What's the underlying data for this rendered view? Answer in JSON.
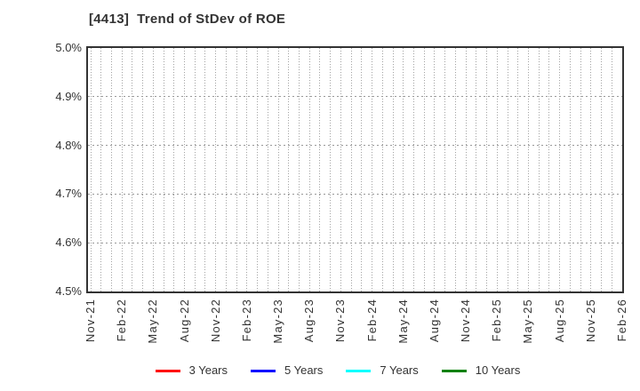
{
  "chart": {
    "title": "[4413]  Trend of StDev of ROE"
  },
  "chart_data": {
    "type": "line",
    "title": "[4413]  Trend of StDev of ROE",
    "x_tick_labels": [
      "Nov-21",
      "Feb-22",
      "May-22",
      "Aug-22",
      "Nov-22",
      "Feb-23",
      "May-23",
      "Aug-23",
      "Nov-23",
      "Feb-24",
      "May-24",
      "Aug-24",
      "Nov-24",
      "Feb-25",
      "May-25",
      "Aug-25",
      "Nov-25",
      "Feb-26"
    ],
    "x_minor_gridlines_per_label_interval": 2,
    "y_tick_labels": [
      "5.0%",
      "4.9%",
      "4.8%",
      "4.7%",
      "4.6%",
      "4.5%"
    ],
    "ylim": [
      4.5,
      5.0
    ],
    "y_unit": "%",
    "grid": true,
    "legend_position": "bottom-center",
    "series": [
      {
        "name": "3 Years",
        "color": "#ff0000",
        "values": []
      },
      {
        "name": "5 Years",
        "color": "#0000ff",
        "values": []
      },
      {
        "name": "7 Years",
        "color": "#00ffff",
        "values": []
      },
      {
        "name": "10 Years",
        "color": "#008000",
        "values": []
      }
    ],
    "note": "Plot area is empty: no series line is visible within the 4.5%-5.0% axis range."
  },
  "colors": {
    "background": "#ffffff",
    "title_text": "#333333",
    "axis_border": "#333333",
    "gridline": "#a3a3a3",
    "tick_label": "#333333",
    "legend_text": "#333333"
  }
}
